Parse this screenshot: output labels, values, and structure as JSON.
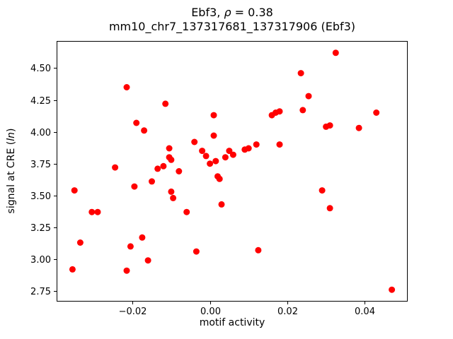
{
  "chart_data": {
    "type": "scatter",
    "title_prefix": "Ebf3, ",
    "title_rho": "ρ",
    "title_suffix": " = 0.38",
    "title_line2": "mm10_chr7_137317681_137317906 (Ebf3)",
    "xlabel": "motif activity",
    "ylabel_prefix": "signal at CRE (",
    "ylabel_italic": "ln",
    "ylabel_suffix": ")",
    "marker_color": "#ff0000",
    "axis_color": "#000000",
    "xlim": [
      -0.0396,
      0.0511
    ],
    "ylim": [
      2.667,
      4.713
    ],
    "xticks": [
      -0.02,
      0.0,
      0.02,
      0.04
    ],
    "xtick_labels": [
      "−0.02",
      "0.00",
      "0.02",
      "0.04"
    ],
    "yticks": [
      2.75,
      3.0,
      3.25,
      3.5,
      3.75,
      4.0,
      4.25,
      4.5
    ],
    "ytick_labels": [
      "2.75",
      "3.00",
      "3.25",
      "3.50",
      "3.75",
      "4.00",
      "4.25",
      "4.50"
    ],
    "legend": "none",
    "grid": false,
    "points": [
      [
        -0.0355,
        2.92
      ],
      [
        -0.035,
        3.54
      ],
      [
        -0.0335,
        3.13
      ],
      [
        -0.0305,
        3.37
      ],
      [
        -0.029,
        3.37
      ],
      [
        -0.0245,
        3.72
      ],
      [
        -0.0215,
        4.35
      ],
      [
        -0.0215,
        2.91
      ],
      [
        -0.0205,
        3.1
      ],
      [
        -0.0195,
        3.57
      ],
      [
        -0.019,
        4.07
      ],
      [
        -0.017,
        4.01
      ],
      [
        -0.0175,
        3.17
      ],
      [
        -0.016,
        2.99
      ],
      [
        -0.015,
        3.61
      ],
      [
        -0.0135,
        3.71
      ],
      [
        -0.012,
        3.73
      ],
      [
        -0.0115,
        4.22
      ],
      [
        -0.0105,
        3.87
      ],
      [
        -0.0105,
        3.8
      ],
      [
        -0.01,
        3.78
      ],
      [
        -0.01,
        3.53
      ],
      [
        -0.0095,
        3.48
      ],
      [
        -0.008,
        3.69
      ],
      [
        -0.006,
        3.37
      ],
      [
        -0.004,
        3.92
      ],
      [
        -0.0035,
        3.06
      ],
      [
        -0.002,
        3.85
      ],
      [
        -0.001,
        3.81
      ],
      [
        0.0,
        3.75
      ],
      [
        0.001,
        4.13
      ],
      [
        0.001,
        3.97
      ],
      [
        0.0015,
        3.77
      ],
      [
        0.002,
        3.65
      ],
      [
        0.0025,
        3.63
      ],
      [
        0.003,
        3.43
      ],
      [
        0.004,
        3.8
      ],
      [
        0.005,
        3.85
      ],
      [
        0.006,
        3.82
      ],
      [
        0.009,
        3.86
      ],
      [
        0.01,
        3.87
      ],
      [
        0.012,
        3.9
      ],
      [
        0.0125,
        3.07
      ],
      [
        0.016,
        4.13
      ],
      [
        0.017,
        4.15
      ],
      [
        0.018,
        4.16
      ],
      [
        0.018,
        3.9
      ],
      [
        0.0235,
        4.46
      ],
      [
        0.024,
        4.17
      ],
      [
        0.0255,
        4.28
      ],
      [
        0.029,
        3.54
      ],
      [
        0.03,
        4.04
      ],
      [
        0.031,
        4.05
      ],
      [
        0.031,
        3.4
      ],
      [
        0.0325,
        4.62
      ],
      [
        0.0385,
        4.03
      ],
      [
        0.043,
        4.15
      ],
      [
        0.047,
        2.76
      ]
    ]
  }
}
